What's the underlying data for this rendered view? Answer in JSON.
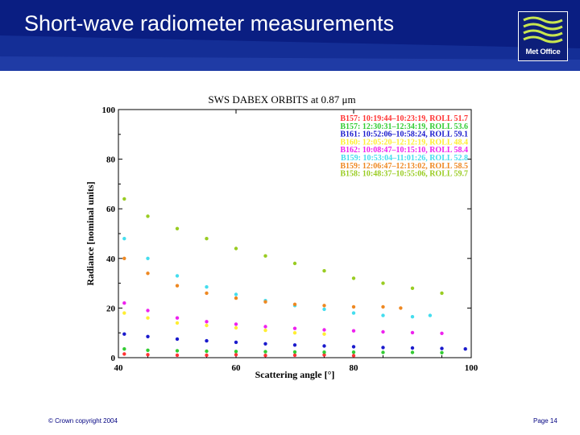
{
  "slide": {
    "title": "Short-wave radiometer measurements",
    "footer_left": "© Crown copyright 2004",
    "footer_right": "Page 14",
    "header_color": "#0a1e82",
    "logo_text": "Met Office"
  },
  "chart_data": {
    "type": "scatter",
    "title": "SWS DABEX ORBITS at  0.87 μm",
    "xlabel": "Scattering angle [°]",
    "ylabel": "Radiance [nominal units]",
    "xlim": [
      40,
      100
    ],
    "ylim": [
      0,
      100
    ],
    "xticks": [
      "40",
      "60",
      "80",
      "100"
    ],
    "yticks": [
      "0",
      "20",
      "40",
      "60",
      "80",
      "100"
    ],
    "legend_position": "top-right",
    "series": [
      {
        "name": "B157: 10:19:44–10:23:19, ROLL 51.7",
        "color": "#ff3333",
        "x": [
          41,
          45,
          50,
          55,
          60,
          65,
          70,
          75,
          80
        ],
        "y": [
          1.5,
          1.2,
          1.0,
          1.0,
          1.2,
          0.9,
          1.0,
          1.1,
          0.8
        ]
      },
      {
        "name": "B157: 12:30:31–12:34:19, ROLL 53.6",
        "color": "#33cc33",
        "x": [
          41,
          45,
          50,
          55,
          60,
          65,
          70,
          75,
          80,
          85,
          90,
          95
        ],
        "y": [
          3.5,
          3.0,
          2.8,
          2.6,
          2.5,
          2.4,
          2.3,
          2.2,
          2.2,
          2.1,
          2.1,
          2.0
        ]
      },
      {
        "name": "B161: 10:52:06–10:58:24, ROLL 59.1",
        "color": "#1a1acc",
        "x": [
          41,
          45,
          50,
          55,
          60,
          65,
          70,
          75,
          80,
          85,
          90,
          95,
          99
        ],
        "y": [
          9.5,
          8.5,
          7.5,
          6.8,
          6.2,
          5.6,
          5.1,
          4.7,
          4.4,
          4.1,
          3.9,
          3.7,
          3.5
        ]
      },
      {
        "name": "B160: 12:05:20–12:12:19, ROLL 48.4",
        "color": "#ffee33",
        "x": [
          41,
          45,
          50,
          55,
          60,
          65,
          70,
          75
        ],
        "y": [
          18,
          16,
          14,
          13,
          12,
          11,
          10,
          9.5
        ]
      },
      {
        "name": "B162: 10:08:47–10:15:10, ROLL 58.4",
        "color": "#ee22ee",
        "x": [
          41,
          45,
          50,
          55,
          60,
          65,
          70,
          75,
          80,
          85,
          90,
          95
        ],
        "y": [
          22,
          19,
          16,
          14.5,
          13.5,
          12.5,
          11.8,
          11.2,
          10.8,
          10.4,
          10.1,
          9.8
        ]
      },
      {
        "name": "B159: 10:53:04–11:01:26, ROLL 52.8",
        "color": "#44ddee",
        "x": [
          41,
          45,
          50,
          55,
          60,
          65,
          70,
          75,
          80,
          85,
          90,
          93
        ],
        "y": [
          48,
          40,
          33,
          28.5,
          25.5,
          23,
          21,
          19.5,
          18,
          17,
          16.5,
          17
        ]
      },
      {
        "name": "B159: 12:06:47–12:13:02, ROLL 58.5",
        "color": "#ee8822",
        "x": [
          41,
          45,
          50,
          55,
          60,
          65,
          70,
          75,
          80,
          85,
          88
        ],
        "y": [
          40,
          34,
          29,
          26,
          24,
          22.5,
          21.5,
          21,
          20.5,
          20.5,
          20
        ]
      },
      {
        "name": "B158: 10:48:37–10:55:06, ROLL 59.7",
        "color": "#99cc22",
        "x": [
          41,
          45,
          50,
          55,
          60,
          65,
          70,
          75,
          80,
          85,
          90,
          95
        ],
        "y": [
          64,
          57,
          52,
          48,
          44,
          41,
          38,
          35,
          32,
          30,
          28,
          26
        ]
      }
    ]
  }
}
